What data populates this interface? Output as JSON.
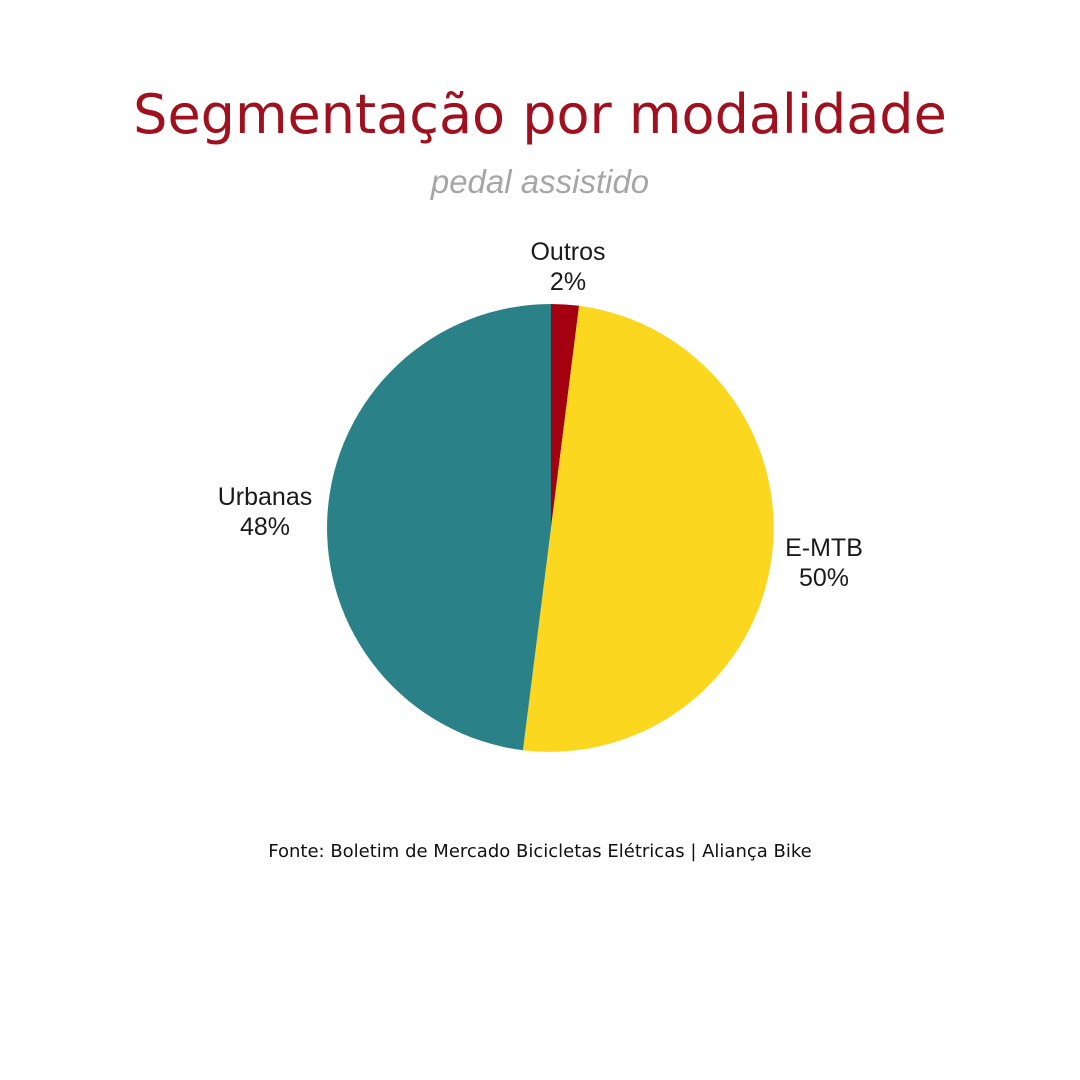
{
  "title": "Segmentação por modalidade",
  "subtitle": "pedal assistido",
  "source": "Fonte: Boletim de Mercado Bicicletas Elétricas | Aliança Bike",
  "chart_data": {
    "type": "pie",
    "title": "Segmentação por modalidade",
    "subtitle": "pedal assistido",
    "slices": [
      {
        "label": "Outros",
        "value": 2,
        "value_label": "2%",
        "color": "#a30010"
      },
      {
        "label": "E-MTB",
        "value": 50,
        "value_label": "50%",
        "color": "#fbd720"
      },
      {
        "label": "Urbanas",
        "value": 48,
        "value_label": "48%",
        "color": "#2a8288"
      }
    ],
    "start": "top",
    "direction": "clockwise"
  }
}
